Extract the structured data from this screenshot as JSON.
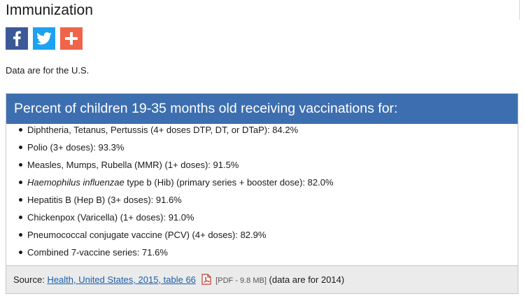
{
  "page": {
    "title": "Immunization"
  },
  "share": [
    {
      "name": "facebook-share-button",
      "icon": "facebook-icon",
      "color": "#3b5998"
    },
    {
      "name": "twitter-share-button",
      "icon": "twitter-icon",
      "color": "#1da1f2"
    },
    {
      "name": "more-share-button",
      "icon": "plus-icon",
      "color": "#f0654a"
    }
  ],
  "note": "Data are for the U.S.",
  "panel": {
    "header": "Percent of children 19-35 months old receiving vaccinations for:",
    "items": [
      {
        "text": "Diphtheria, Tetanus, Pertussis (4+ doses DTP, DT, or DTaP): 84.2%"
      },
      {
        "text": "Polio (3+ doses): 93.3%"
      },
      {
        "text": "Measles, Mumps, Rubella (MMR) (1+ doses): 91.5%"
      },
      {
        "italic": "Haemophilus influenzae",
        "text": " type b (Hib) (primary series + booster dose): 82.0%"
      },
      {
        "text": "Hepatitis B (Hep B) (3+ doses): 91.6%"
      },
      {
        "text": "Chickenpox (Varicella) (1+ doses): 91.0%"
      },
      {
        "text": "Pneumococcal conjugate vaccine (PCV) (4+ doses): 82.9%"
      },
      {
        "text": "Combined 7-vaccine series: 71.6%"
      }
    ],
    "source": {
      "label": "Source:",
      "link": "Health, United States, 2015, table 66",
      "file_icon": "pdf-icon",
      "file_meta": "[PDF - 9.8 MB]",
      "suffix": "(data are for 2014)"
    }
  }
}
